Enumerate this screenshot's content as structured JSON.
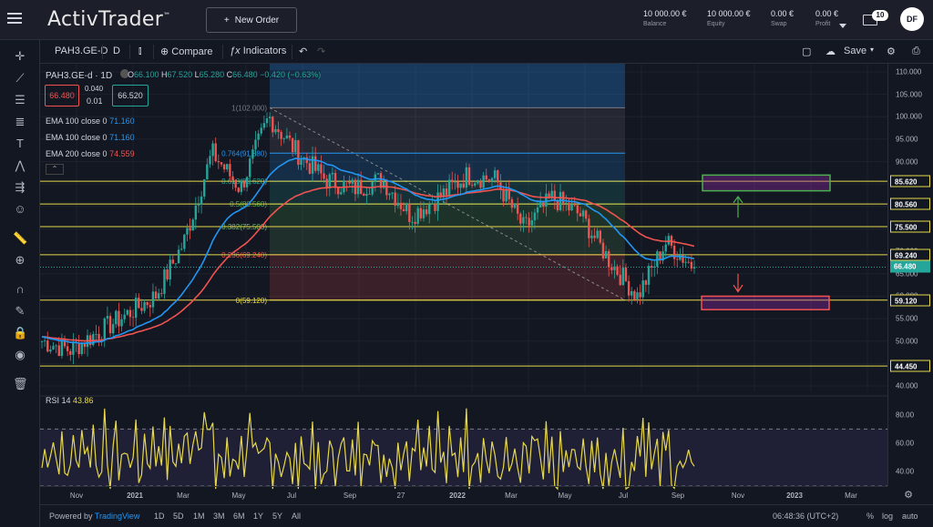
{
  "header": {
    "brand": "ActivTrader",
    "brand_tm": "™",
    "new_order_label": "New Order",
    "account": [
      {
        "value": "10 000.00 €",
        "label": "Balance"
      },
      {
        "value": "10 000.00 €",
        "label": "Equity"
      },
      {
        "value": "0.00 €",
        "label": "Swap"
      },
      {
        "value": "0.00 €",
        "label": "Profit"
      }
    ],
    "mail_count": "10",
    "avatar": "DF"
  },
  "toolbar": {
    "symbol": "PAH3.GE-D",
    "interval": "D",
    "compare": "Compare",
    "indicators": "Indicators",
    "save": "Save"
  },
  "legend": {
    "symbol": "PAH3.GE-d · 1D",
    "ohlc": {
      "o": "66.100",
      "h": "67.520",
      "l": "65.280",
      "c": "66.480",
      "chg": "−0.420 (−0.63%)"
    },
    "bid": "66.480",
    "spread": "0.040",
    "lot": "0.01",
    "ask": "66.520",
    "emas": [
      {
        "label": "EMA 100 close 0",
        "value": "71.160",
        "color": "#2196f3"
      },
      {
        "label": "EMA 100 close 0",
        "value": "71.160",
        "color": "#2196f3"
      },
      {
        "label": "EMA 200 close 0",
        "value": "74.559",
        "color": "#f05350"
      }
    ]
  },
  "rsi": {
    "label": "RSI 14",
    "value": "43.86"
  },
  "price_axis": [
    "110.000",
    "105.000",
    "100.000",
    "95.000",
    "90.000",
    "85.000",
    "80.000",
    "75.000",
    "70.000",
    "65.000",
    "60.000",
    "55.000",
    "50.000",
    "45.000",
    "40.000"
  ],
  "rsi_axis": [
    "80.00",
    "60.00",
    "40.00"
  ],
  "price_badges": [
    {
      "value": "85.620",
      "price": 85.62,
      "kind": "level"
    },
    {
      "value": "80.560",
      "price": 80.56,
      "kind": "level"
    },
    {
      "value": "75.500",
      "price": 75.5,
      "kind": "level"
    },
    {
      "value": "69.240",
      "price": 69.24,
      "kind": "level"
    },
    {
      "value": "66.480",
      "price": 66.48,
      "kind": "last"
    },
    {
      "value": "59.120",
      "price": 59.12,
      "kind": "level"
    },
    {
      "value": "44.450",
      "price": 44.45,
      "kind": "level"
    }
  ],
  "fib_levels": [
    {
      "label": "1(102.000)",
      "price": 102.0
    },
    {
      "label": "0.764(91.880)",
      "price": 91.88
    },
    {
      "label": "0.618(85.620)",
      "price": 85.62
    },
    {
      "label": "0.5(80.560)",
      "price": 80.56
    },
    {
      "label": "0.382(75.500)",
      "price": 75.5
    },
    {
      "label": "0.236(69.240)",
      "price": 69.24
    },
    {
      "label": "0(59.120)",
      "price": 59.12
    }
  ],
  "time_axis": [
    "Nov",
    "2021",
    "Mar",
    "May",
    "Jul",
    "Sep",
    "27",
    "2022",
    "Mar",
    "May",
    "Jul",
    "Sep",
    "Nov",
    "2023",
    "Mar"
  ],
  "bottom": {
    "powered": "Powered by",
    "tv": "TradingView",
    "ranges": [
      "1D",
      "5D",
      "1M",
      "3M",
      "6M",
      "1Y",
      "5Y",
      "All"
    ],
    "clock": "06:48:36 (UTC+2)",
    "pct": "%",
    "log": "log",
    "auto": "auto"
  },
  "colors": {
    "up": "#26a69a",
    "down": "#ef5350",
    "ema_fast": "#2196f3",
    "ema_slow": "#f05350",
    "level": "#e6d84a",
    "rsi": "#e6d84a"
  },
  "chart_data": {
    "type": "line",
    "title": "",
    "series": [
      {
        "name": "PAH3.GE-d",
        "x": [
          "2020-10",
          "2020-11",
          "2020-12",
          "2021-01",
          "2021-02",
          "2021-03",
          "2021-04",
          "2021-05",
          "2021-06",
          "2021-07",
          "2021-08",
          "2021-09",
          "2021-10",
          "2021-11",
          "2021-12",
          "2022-01",
          "2022-02",
          "2022-03",
          "2022-04",
          "2022-05",
          "2022-06",
          "2022-07",
          "2022-08",
          "2022-09"
        ],
        "y": [
          50,
          48,
          52,
          56,
          60,
          72,
          92,
          84,
          100,
          92,
          86,
          84,
          86,
          78,
          82,
          87,
          86,
          75,
          82,
          78,
          68,
          60,
          72,
          66.48
        ]
      }
    ],
    "ylim": [
      40,
      110
    ]
  }
}
